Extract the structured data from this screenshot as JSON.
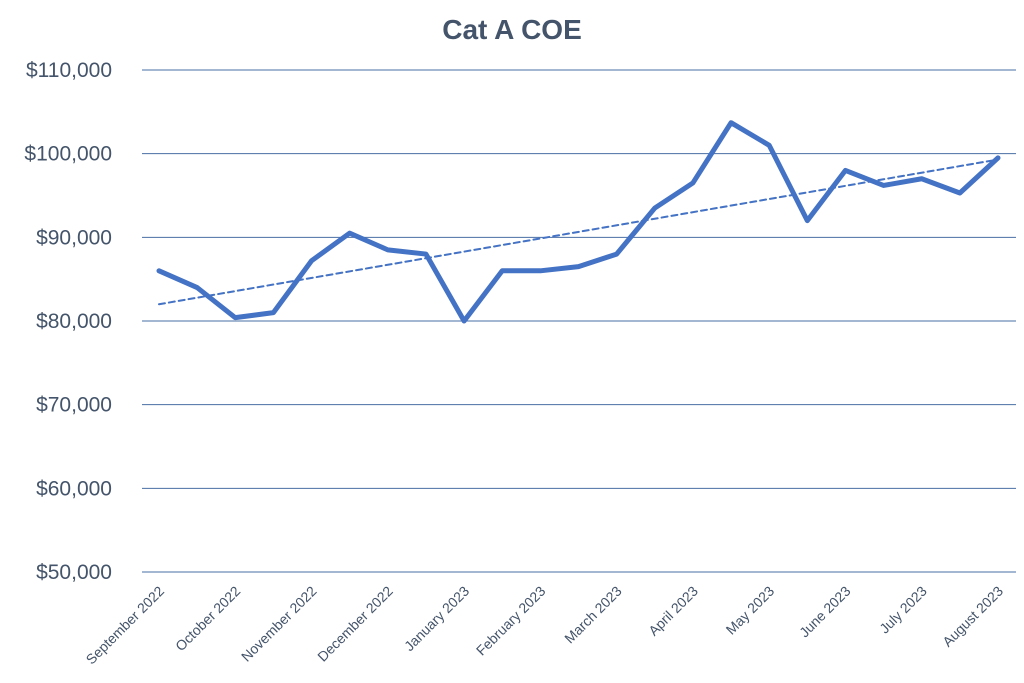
{
  "chart_data": {
    "type": "line",
    "title": "Cat A COE",
    "xlabel": "",
    "ylabel": "",
    "ylim": [
      50000,
      110000
    ],
    "y_ticks": [
      50000,
      60000,
      70000,
      80000,
      90000,
      100000,
      110000
    ],
    "y_tick_labels": [
      "$50,000",
      "$60,000",
      "$70,000",
      "$80,000",
      "$90,000",
      "$100,000",
      "$110,000"
    ],
    "x_tick_labels": [
      "September 2022",
      "October 2022",
      "November 2022",
      "December 2022",
      "January 2023",
      "February 2023",
      "March 2023",
      "April 2023",
      "May 2023",
      "June 2023",
      "July 2023",
      "August 2023"
    ],
    "grid": true,
    "colors": {
      "series": "#4472c4",
      "grid": "#4a6fa5",
      "text": "#44546a"
    },
    "series": [
      {
        "style": "solid",
        "values": [
          86000,
          84000,
          80400,
          81000,
          87200,
          90500,
          88500,
          88000,
          80000,
          86000,
          86000,
          86500,
          88000,
          93500,
          96500,
          103700,
          101000,
          92000,
          98000,
          96200,
          97000,
          95300,
          99500
        ]
      },
      {
        "style": "dashed",
        "trendline": "linear",
        "values": [
          82000,
          99300
        ]
      }
    ]
  }
}
